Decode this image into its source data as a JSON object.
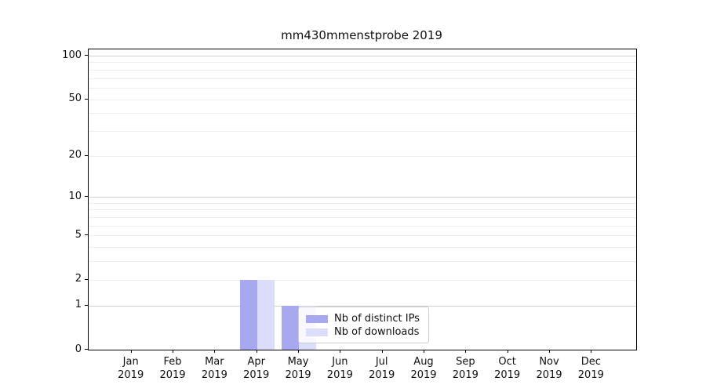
{
  "chart_data": {
    "type": "bar",
    "title": "mm430mmenstprobe 2019",
    "categories": [
      "Jan",
      "Feb",
      "Mar",
      "Apr",
      "May",
      "Jun",
      "Jul",
      "Aug",
      "Sep",
      "Oct",
      "Nov",
      "Dec"
    ],
    "category_sublabel": "2019",
    "series": [
      {
        "name": "Nb of distinct IPs",
        "color": "#a8a8f0",
        "values": [
          0,
          0,
          0,
          2,
          1,
          0,
          0,
          0,
          0,
          0,
          0,
          0
        ]
      },
      {
        "name": "Nb of downloads",
        "color": "#dcdcfb",
        "values": [
          0,
          0,
          0,
          2,
          1,
          0,
          0,
          0,
          0,
          0,
          0,
          0
        ]
      }
    ],
    "yticks": [
      0,
      1,
      2,
      5,
      10,
      20,
      50,
      100
    ],
    "ylim": [
      0,
      110
    ],
    "yscale": "log1p",
    "grid": "on",
    "major_grid_values": [
      1,
      10,
      100
    ],
    "minor_grid_values": [
      2,
      3,
      4,
      5,
      6,
      7,
      8,
      9,
      20,
      30,
      40,
      50,
      60,
      70,
      80,
      90
    ],
    "legend_position": "lower-center-inside",
    "colors": {
      "spine": "#000000",
      "major_grid": "#d0d0d0",
      "minor_grid": "#ececec",
      "legend_border": "#cccccc"
    }
  }
}
